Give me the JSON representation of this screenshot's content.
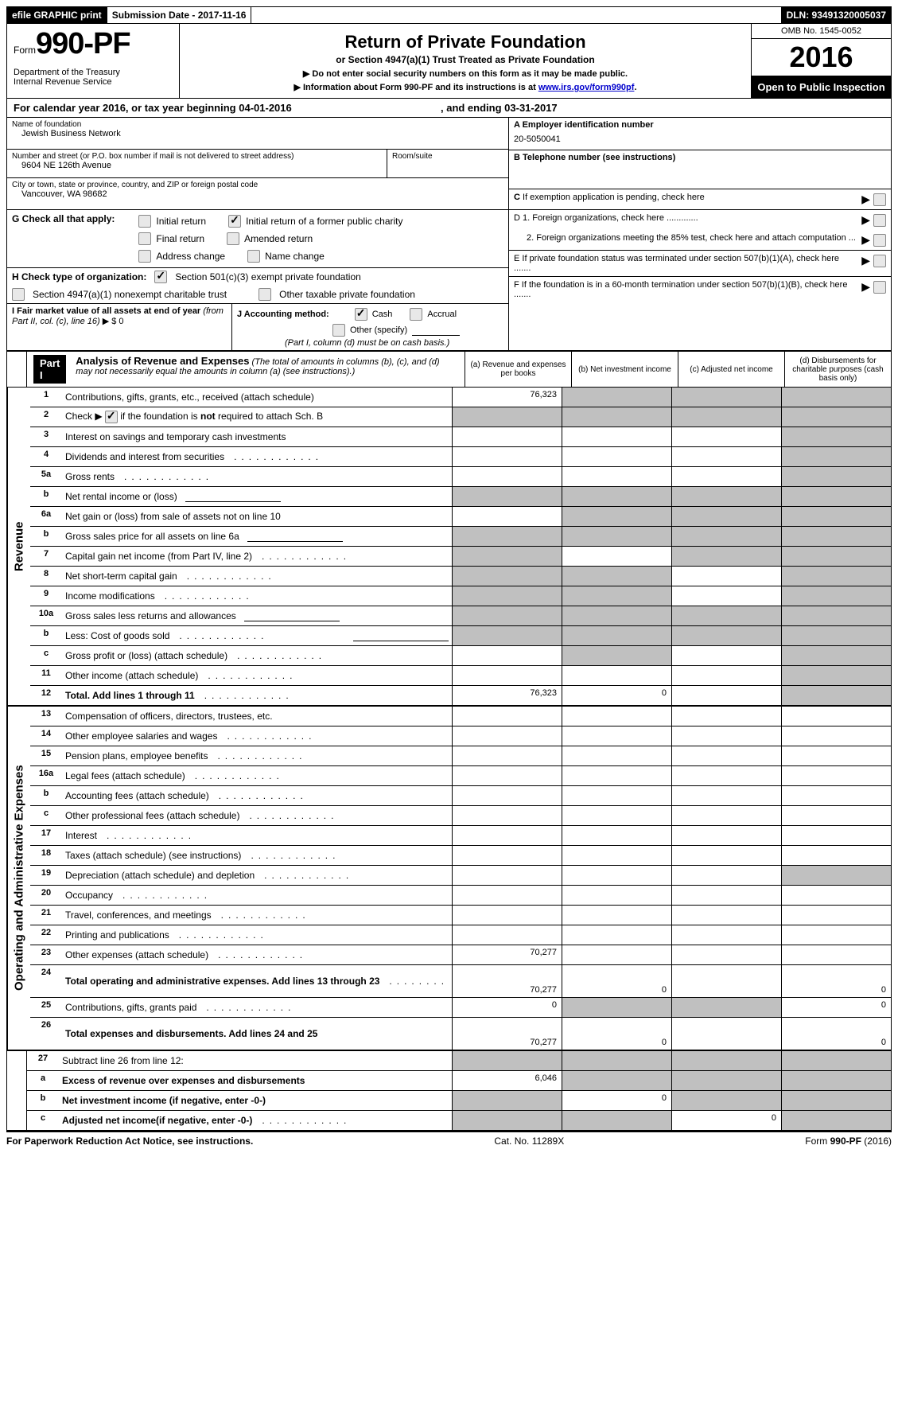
{
  "top_bar": {
    "efile": "efile GRAPHIC print",
    "submission": "Submission Date - 2017-11-16",
    "dln": "DLN: 93491320005037"
  },
  "header": {
    "form_prefix": "Form",
    "form_number": "990-PF",
    "dept1": "Department of the Treasury",
    "dept2": "Internal Revenue Service",
    "title": "Return of Private Foundation",
    "subtitle": "or Section 4947(a)(1) Trust Treated as Private Foundation",
    "warn1": "▶ Do not enter social security numbers on this form as it may be made public.",
    "warn2_pre": "▶ Information about Form 990-PF and its instructions is at ",
    "warn2_link": "www.irs.gov/form990pf",
    "warn2_post": ".",
    "omb": "OMB No. 1545-0052",
    "year": "2016",
    "open": "Open to Public Inspection"
  },
  "calendar": {
    "text_pre": "For calendar year 2016, or tax year beginning ",
    "begin": "04-01-2016",
    "text_mid": " , and ending ",
    "end": "03-31-2017"
  },
  "entity": {
    "name_label": "Name of foundation",
    "name": "Jewish Business Network",
    "addr_label": "Number and street (or P.O. box number if mail is not delivered to street address)",
    "addr": "9604 NE 126th Avenue",
    "room_label": "Room/suite",
    "city_label": "City or town, state or province, country, and ZIP or foreign postal code",
    "city": "Vancouver, WA  98682"
  },
  "right_boxes": {
    "A_label": "A Employer identification number",
    "A_value": "20-5050041",
    "B_label": "B Telephone number (see instructions)",
    "C_label": "C If exemption application is pending, check here",
    "D1": "D 1. Foreign organizations, check here .............",
    "D2": "2. Foreign organizations meeting the 85% test, check here and attach computation ...",
    "E": "E  If private foundation status was terminated under section 507(b)(1)(A), check here .......",
    "F": "F  If the foundation is in a 60-month termination under section 507(b)(1)(B), check here ......."
  },
  "G": {
    "label": "G Check all that apply:",
    "initial": "Initial return",
    "initial_former": "Initial return of a former public charity",
    "final": "Final return",
    "amended": "Amended return",
    "addr_change": "Address change",
    "name_change": "Name change"
  },
  "H": {
    "label": "H Check type of organization:",
    "c3": "Section 501(c)(3) exempt private foundation",
    "trust": "Section 4947(a)(1) nonexempt charitable trust",
    "other": "Other taxable private foundation"
  },
  "I": {
    "label_pre": "I Fair market value of all assets at end of year ",
    "label_italic": "(from Part II, col. (c), line 16)",
    "arrow": "▶",
    "value": "$  0"
  },
  "J": {
    "label": "J Accounting method:",
    "cash": "Cash",
    "accrual": "Accrual",
    "other": "Other (specify)",
    "note": "(Part I, column (d) must be on cash basis.)"
  },
  "part1": {
    "part": "Part I",
    "title": "Analysis of Revenue and Expenses",
    "title_note": " (The total of amounts in columns (b), (c), and (d) may not necessarily equal the amounts in column (a) (see instructions).)",
    "col_a": "(a)   Revenue and expenses per books",
    "col_b": "(b)   Net investment income",
    "col_c": "(c)   Adjusted net income",
    "col_d": "(d)   Disbursements for charitable purposes (cash basis only)"
  },
  "sections": {
    "revenue": "Revenue",
    "expenses": "Operating and Administrative Expenses"
  },
  "rows": [
    {
      "n": "1",
      "label": "Contributions, gifts, grants, etc., received (attach schedule)",
      "a": "76,323",
      "b": "",
      "c": "",
      "d": "",
      "shade": [
        "b",
        "c",
        "d"
      ]
    },
    {
      "n": "2",
      "label": "Check ▶  ☑  if the foundation is not required to attach Sch. B",
      "a": "",
      "b": "",
      "c": "",
      "d": "",
      "shade": [
        "a",
        "b",
        "c",
        "d"
      ],
      "checkbox": true
    },
    {
      "n": "3",
      "label": "Interest on savings and temporary cash investments",
      "a": "",
      "b": "",
      "c": "",
      "d": "",
      "shade": [
        "d"
      ]
    },
    {
      "n": "4",
      "label": "Dividends and interest from securities",
      "a": "",
      "b": "",
      "c": "",
      "d": "",
      "dots": true,
      "shade": [
        "d"
      ]
    },
    {
      "n": "5a",
      "label": "Gross rents",
      "a": "",
      "b": "",
      "c": "",
      "d": "",
      "dots": true,
      "shade": [
        "d"
      ]
    },
    {
      "n": "b",
      "label": "Net rental income or (loss)",
      "a": "",
      "b": "",
      "c": "",
      "d": "",
      "shade": [
        "a",
        "b",
        "c",
        "d"
      ],
      "underline": true
    },
    {
      "n": "6a",
      "label": "Net gain or (loss) from sale of assets not on line 10",
      "a": "",
      "b": "",
      "c": "",
      "d": "",
      "shade": [
        "b",
        "c",
        "d"
      ]
    },
    {
      "n": "b",
      "label": "Gross sales price for all assets on line 6a",
      "a": "",
      "b": "",
      "c": "",
      "d": "",
      "shade": [
        "a",
        "b",
        "c",
        "d"
      ],
      "underline": true
    },
    {
      "n": "7",
      "label": "Capital gain net income (from Part IV, line 2)",
      "a": "",
      "b": "",
      "c": "",
      "d": "",
      "dots": true,
      "shade": [
        "a",
        "c",
        "d"
      ]
    },
    {
      "n": "8",
      "label": "Net short-term capital gain",
      "a": "",
      "b": "",
      "c": "",
      "d": "",
      "dots": true,
      "shade": [
        "a",
        "b",
        "d"
      ]
    },
    {
      "n": "9",
      "label": "Income modifications",
      "a": "",
      "b": "",
      "c": "",
      "d": "",
      "dots": true,
      "shade": [
        "a",
        "b",
        "d"
      ]
    },
    {
      "n": "10a",
      "label": "Gross sales less returns and allowances",
      "a": "",
      "b": "",
      "c": "",
      "d": "",
      "shade": [
        "a",
        "b",
        "c",
        "d"
      ],
      "underline": true
    },
    {
      "n": "b",
      "label": "Less: Cost of goods sold",
      "a": "",
      "b": "",
      "c": "",
      "d": "",
      "dots": true,
      "shade": [
        "a",
        "b",
        "c",
        "d"
      ],
      "underline": true
    },
    {
      "n": "c",
      "label": "Gross profit or (loss) (attach schedule)",
      "a": "",
      "b": "",
      "c": "",
      "d": "",
      "dots": true,
      "shade": [
        "b",
        "d"
      ]
    },
    {
      "n": "11",
      "label": "Other income (attach schedule)",
      "a": "",
      "b": "",
      "c": "",
      "d": "",
      "dots": true,
      "shade": [
        "d"
      ]
    },
    {
      "n": "12",
      "label": "Total. Add lines 1 through 11",
      "a": "76,323",
      "b": "0",
      "c": "",
      "d": "",
      "dots": true,
      "bold": true,
      "shade": [
        "d"
      ]
    }
  ],
  "exp_rows": [
    {
      "n": "13",
      "label": "Compensation of officers, directors, trustees, etc.",
      "a": "",
      "b": "",
      "c": "",
      "d": ""
    },
    {
      "n": "14",
      "label": "Other employee salaries and wages",
      "a": "",
      "b": "",
      "c": "",
      "d": "",
      "dots": true
    },
    {
      "n": "15",
      "label": "Pension plans, employee benefits",
      "a": "",
      "b": "",
      "c": "",
      "d": "",
      "dots": true
    },
    {
      "n": "16a",
      "label": "Legal fees (attach schedule)",
      "a": "",
      "b": "",
      "c": "",
      "d": "",
      "dots": true
    },
    {
      "n": "b",
      "label": "Accounting fees (attach schedule)",
      "a": "",
      "b": "",
      "c": "",
      "d": "",
      "dots": true
    },
    {
      "n": "c",
      "label": "Other professional fees (attach schedule)",
      "a": "",
      "b": "",
      "c": "",
      "d": "",
      "dots": true
    },
    {
      "n": "17",
      "label": "Interest",
      "a": "",
      "b": "",
      "c": "",
      "d": "",
      "dots": true
    },
    {
      "n": "18",
      "label": "Taxes (attach schedule) (see instructions)",
      "a": "",
      "b": "",
      "c": "",
      "d": "",
      "dots": true
    },
    {
      "n": "19",
      "label": "Depreciation (attach schedule) and depletion",
      "a": "",
      "b": "",
      "c": "",
      "d": "",
      "dots": true,
      "shade": [
        "d"
      ]
    },
    {
      "n": "20",
      "label": "Occupancy",
      "a": "",
      "b": "",
      "c": "",
      "d": "",
      "dots": true
    },
    {
      "n": "21",
      "label": "Travel, conferences, and meetings",
      "a": "",
      "b": "",
      "c": "",
      "d": "",
      "dots": true
    },
    {
      "n": "22",
      "label": "Printing and publications",
      "a": "",
      "b": "",
      "c": "",
      "d": "",
      "dots": true
    },
    {
      "n": "23",
      "label": "Other expenses (attach schedule)",
      "a": "70,277",
      "b": "",
      "c": "",
      "d": "",
      "dots": true
    },
    {
      "n": "24",
      "label": "Total operating and administrative expenses. Add lines 13 through 23",
      "a": "70,277",
      "b": "0",
      "c": "",
      "d": "0",
      "dots": true,
      "bold": true,
      "tall": true
    },
    {
      "n": "25",
      "label": "Contributions, gifts, grants paid",
      "a": "0",
      "b": "",
      "c": "",
      "d": "0",
      "dots": true,
      "shade": [
        "b",
        "c"
      ]
    },
    {
      "n": "26",
      "label": "Total expenses and disbursements. Add lines 24 and 25",
      "a": "70,277",
      "b": "0",
      "c": "",
      "d": "0",
      "bold": true,
      "tall": true
    }
  ],
  "bottom_rows": [
    {
      "n": "27",
      "label": "Subtract line 26 from line 12:",
      "a": "",
      "b": "",
      "c": "",
      "d": "",
      "shade": [
        "a",
        "b",
        "c",
        "d"
      ]
    },
    {
      "n": "a",
      "label": "Excess of revenue over expenses and disbursements",
      "a": "6,046",
      "b": "",
      "c": "",
      "d": "",
      "bold": true,
      "shade": [
        "b",
        "c",
        "d"
      ]
    },
    {
      "n": "b",
      "label": "Net investment income (if negative, enter -0-)",
      "a": "",
      "b": "0",
      "c": "",
      "d": "",
      "bold": true,
      "shade": [
        "a",
        "c",
        "d"
      ]
    },
    {
      "n": "c",
      "label": "Adjusted net income(if negative, enter -0-)",
      "a": "",
      "b": "",
      "c": "0",
      "d": "",
      "bold": true,
      "dots": true,
      "shade": [
        "a",
        "b",
        "d"
      ]
    }
  ],
  "footer": {
    "left": "For Paperwork Reduction Act Notice, see instructions.",
    "mid": "Cat. No. 11289X",
    "right_pre": "Form ",
    "right_bold": "990-PF",
    "right_post": " (2016)"
  }
}
